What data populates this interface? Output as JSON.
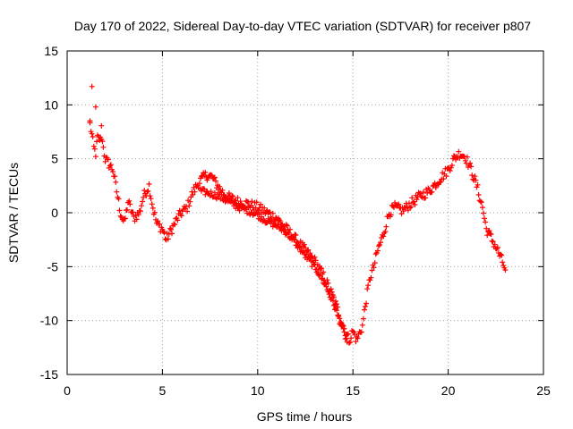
{
  "chart_data": {
    "type": "scatter",
    "title": "Day 170 of 2022, Sidereal Day-to-day VTEC variation (SDTVAR) for receiver p807",
    "xlabel": "GPS time / hours",
    "ylabel": "SDTVAR / TECUs",
    "xlim": [
      0,
      25
    ],
    "ylim": [
      -15,
      15
    ],
    "xticks": [
      0,
      5,
      10,
      15,
      20,
      25
    ],
    "yticks": [
      -15,
      -10,
      -5,
      0,
      5,
      10,
      15
    ],
    "xtick_labels": [
      "0",
      "5",
      "10",
      "15",
      "20",
      "25"
    ],
    "ytick_labels": [
      "-15",
      "-10",
      "-5",
      "0",
      "5",
      "10",
      "15"
    ],
    "grid": true,
    "marker": "+",
    "color": "#ff0000",
    "series": [
      {
        "name": "p807",
        "track": [
          [
            1.2,
            8.2
          ],
          [
            1.3,
            7.2
          ],
          [
            1.4,
            6.0
          ],
          [
            1.5,
            5.5
          ],
          [
            1.6,
            7.0
          ],
          [
            1.7,
            6.5
          ],
          [
            1.8,
            7.8
          ],
          [
            1.9,
            6.0
          ],
          [
            2.0,
            5.0
          ],
          [
            2.2,
            4.5
          ],
          [
            2.4,
            4.0
          ],
          [
            2.6,
            2.0
          ],
          [
            2.8,
            0.0
          ],
          [
            3.0,
            -1.0
          ],
          [
            3.2,
            1.0
          ],
          [
            3.5,
            -0.5
          ],
          [
            3.8,
            0.0
          ],
          [
            4.0,
            1.5
          ],
          [
            4.3,
            2.5
          ],
          [
            4.5,
            0.5
          ],
          [
            4.7,
            -1.0
          ],
          [
            5.0,
            -1.5
          ],
          [
            5.2,
            -2.5
          ],
          [
            5.5,
            -1.5
          ],
          [
            5.8,
            -0.5
          ],
          [
            6.0,
            0.0
          ],
          [
            6.3,
            0.5
          ],
          [
            6.5,
            1.5
          ],
          [
            6.8,
            2.5
          ],
          [
            7.0,
            3.0
          ],
          [
            7.3,
            3.5
          ],
          [
            7.6,
            3.3
          ],
          [
            7.9,
            2.5
          ],
          [
            8.2,
            1.8
          ],
          [
            8.5,
            1.4
          ],
          [
            9.0,
            1.0
          ],
          [
            9.5,
            0.8
          ],
          [
            10.0,
            0.5
          ],
          [
            10.5,
            0.0
          ],
          [
            11.0,
            -0.5
          ],
          [
            11.5,
            -1.5
          ],
          [
            12.0,
            -2.5
          ],
          [
            12.5,
            -3.5
          ],
          [
            13.0,
            -4.5
          ],
          [
            13.5,
            -6.0
          ],
          [
            14.0,
            -8.0
          ],
          [
            14.3,
            -9.5
          ],
          [
            14.6,
            -11.0
          ],
          [
            14.8,
            -11.8
          ],
          [
            15.0,
            -11.0
          ],
          [
            15.2,
            -11.8
          ],
          [
            15.5,
            -10.5
          ],
          [
            15.7,
            -8.0
          ],
          [
            15.9,
            -6.0
          ],
          [
            16.1,
            -5.0
          ],
          [
            16.3,
            -3.5
          ],
          [
            16.6,
            -2.0
          ],
          [
            16.9,
            0.0
          ],
          [
            17.2,
            0.5
          ],
          [
            17.6,
            0.2
          ],
          [
            18.0,
            0.8
          ],
          [
            18.5,
            1.5
          ],
          [
            19.0,
            2.0
          ],
          [
            19.5,
            3.0
          ],
          [
            20.0,
            4.0
          ],
          [
            20.3,
            5.0
          ],
          [
            20.6,
            5.5
          ],
          [
            20.9,
            5.2
          ],
          [
            21.2,
            4.0
          ],
          [
            21.5,
            2.5
          ],
          [
            21.8,
            0.5
          ],
          [
            22.0,
            -1.5
          ],
          [
            22.3,
            -2.5
          ],
          [
            22.6,
            -3.5
          ],
          [
            22.9,
            -4.8
          ],
          [
            23.0,
            -5.3
          ]
        ],
        "secondary_track": [
          [
            7.0,
            2.0
          ],
          [
            7.5,
            1.8
          ],
          [
            8.0,
            1.5
          ],
          [
            8.5,
            1.0
          ],
          [
            9.0,
            0.5
          ],
          [
            9.5,
            0.2
          ],
          [
            10.0,
            -0.2
          ],
          [
            10.5,
            -0.8
          ],
          [
            11.0,
            -1.2
          ],
          [
            11.5,
            -1.8
          ],
          [
            12.0,
            -2.8
          ],
          [
            12.5,
            -4.0
          ],
          [
            13.0,
            -5.0
          ],
          [
            13.5,
            -6.5
          ],
          [
            14.0,
            -8.5
          ],
          [
            14.4,
            -10.5
          ],
          [
            14.7,
            -12.0
          ]
        ],
        "outliers": [
          [
            1.3,
            11.7
          ],
          [
            1.5,
            9.8
          ],
          [
            1.2,
            8.5
          ],
          [
            1.8,
            6.8
          ]
        ]
      }
    ]
  }
}
